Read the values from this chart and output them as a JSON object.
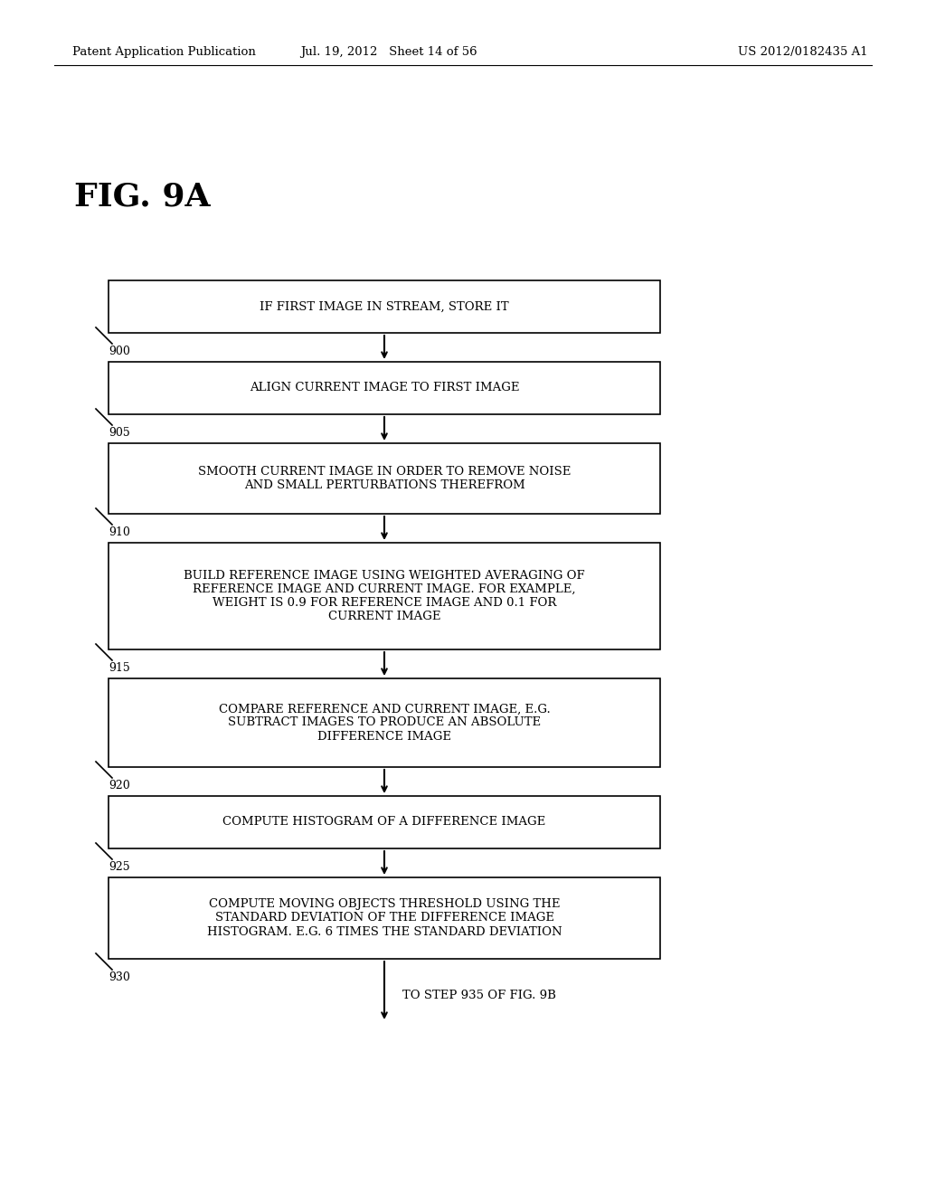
{
  "header_left": "Patent Application Publication",
  "header_mid": "Jul. 19, 2012   Sheet 14 of 56",
  "header_right": "US 2012/0182435 A1",
  "fig_label": "FIG. 9A",
  "background_color": "#ffffff",
  "boxes": [
    {
      "id": "900",
      "step": "900",
      "text": "IF FIRST IMAGE IN STREAM, STORE IT"
    },
    {
      "id": "905",
      "step": "905",
      "text": "ALIGN CURRENT IMAGE TO FIRST IMAGE"
    },
    {
      "id": "910",
      "step": "910",
      "text": "SMOOTH CURRENT IMAGE IN ORDER TO REMOVE NOISE\nAND SMALL PERTURBATIONS THEREFROM"
    },
    {
      "id": "915",
      "step": "915",
      "text": "BUILD REFERENCE IMAGE USING WEIGHTED AVERAGING OF\nREFERENCE IMAGE AND CURRENT IMAGE. FOR EXAMPLE,\nWEIGHT IS 0.9 FOR REFERENCE IMAGE AND 0.1 FOR\nCURRENT IMAGE"
    },
    {
      "id": "920",
      "step": "920",
      "text": "COMPARE REFERENCE AND CURRENT IMAGE, E.G.\nSUBTRACT IMAGES TO PRODUCE AN ABSOLUTE\nDIFFERENCE IMAGE"
    },
    {
      "id": "925",
      "step": "925",
      "text": "COMPUTE HISTOGRAM OF A DIFFERENCE IMAGE"
    },
    {
      "id": "930",
      "step": "930",
      "text": "COMPUTE MOVING OBJECTS THRESHOLD USING THE\nSTANDARD DEVIATION OF THE DIFFERENCE IMAGE\nHISTOGRAM. E.G. 6 TIMES THE STANDARD DEVIATION"
    }
  ],
  "bottom_label": "TO STEP 935 OF FIG. 9B",
  "box_facecolor": "#ffffff",
  "box_edgecolor": "#000000",
  "arrow_color": "#000000",
  "text_color": "#000000"
}
